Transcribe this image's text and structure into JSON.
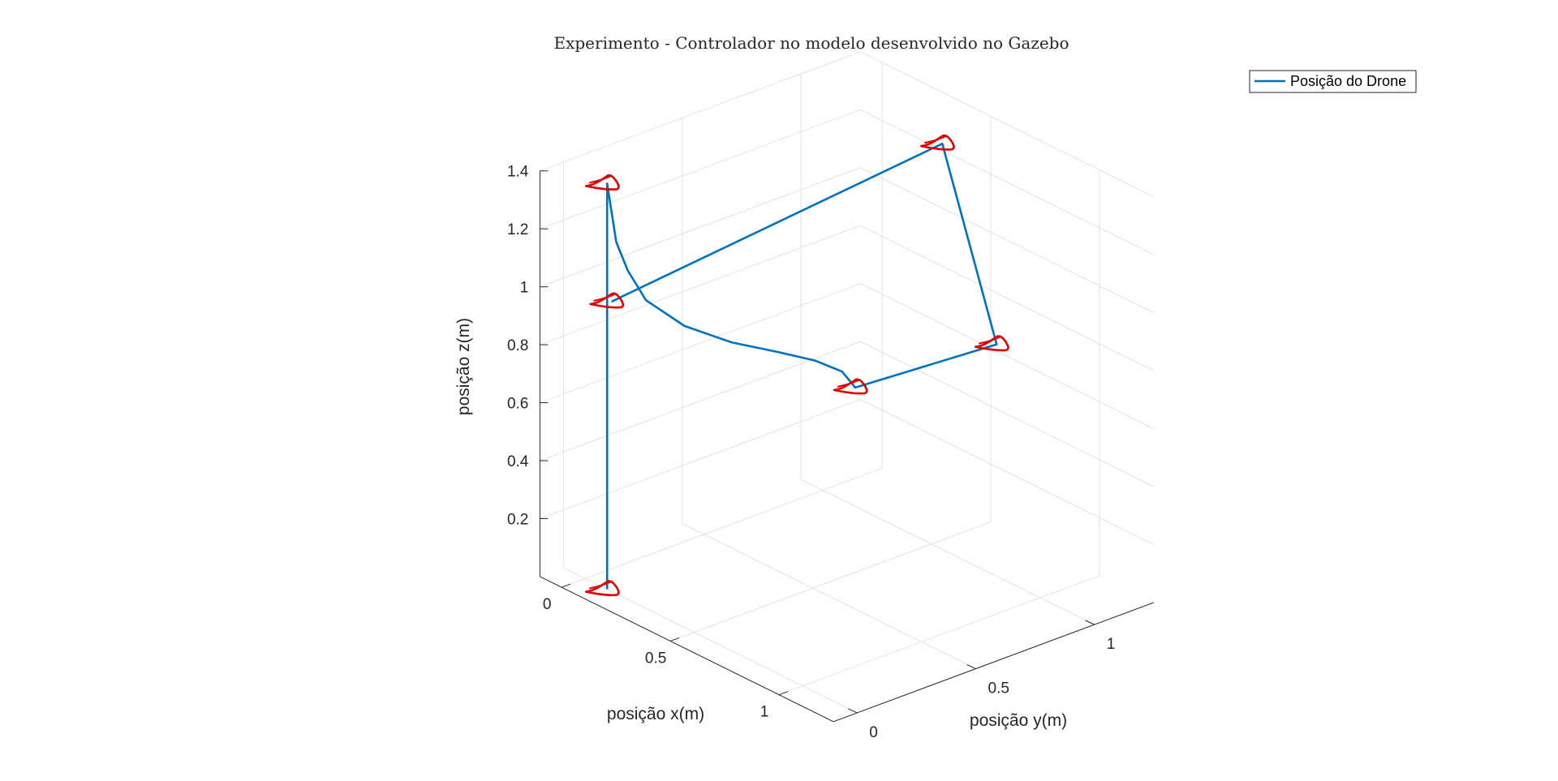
{
  "chart_data": {
    "type": "line",
    "dimensions": "3d",
    "title": "Experimento - Controlador no modelo desenvolvido no Gazebo",
    "xlabel": "posição x(m)",
    "ylabel": "posição y(m)",
    "zlabel": "posição z(m)",
    "xticks": [
      {
        "v": 0,
        "label": "0"
      },
      {
        "v": 0.5,
        "label": "0.5"
      },
      {
        "v": 1,
        "label": "1"
      }
    ],
    "yticks": [
      {
        "v": 0,
        "label": "0"
      },
      {
        "v": 0.5,
        "label": "0.5"
      },
      {
        "v": 1,
        "label": "1"
      }
    ],
    "zticks": [
      {
        "v": 0.2,
        "label": "0.2"
      },
      {
        "v": 0.4,
        "label": "0.4"
      },
      {
        "v": 0.6,
        "label": "0.6"
      },
      {
        "v": 0.8,
        "label": "0.8"
      },
      {
        "v": 1,
        "label": "1"
      },
      {
        "v": 1.2,
        "label": "1.2"
      },
      {
        "v": 1.4,
        "label": "1.4"
      }
    ],
    "xlim": [
      -0.1,
      1.25
    ],
    "ylim": [
      -0.1,
      1.25
    ],
    "zlim": [
      0,
      1.4
    ],
    "grid": true,
    "legend": {
      "entries": [
        "Posição do Drone"
      ],
      "location": "top-right"
    },
    "colors": {
      "trajectory": "#0072bd",
      "drone_marker": "#e00000",
      "grid": "#e3e3e3",
      "axis": "#262626"
    },
    "series": [
      {
        "name": "Posição do Drone",
        "x": [
          0.1,
          0.1,
          0.1,
          0.1,
          0.1,
          0.11,
          0.12,
          0.14,
          0.18,
          0.27,
          0.39,
          0.52,
          0.62,
          0.7,
          0.75,
          0.8,
          0.55,
          0.12
        ],
        "y": [
          0.0,
          0.0,
          0.0,
          0.0,
          0.0,
          0.01,
          0.02,
          0.05,
          0.09,
          0.17,
          0.26,
          0.34,
          0.4,
          0.44,
          0.45,
          1.0,
          1.0,
          0.0
        ],
        "z": [
          0.0,
          0.5,
          1.0,
          1.2,
          1.4,
          1.3,
          1.2,
          1.1,
          1.0,
          0.92,
          0.88,
          0.87,
          0.86,
          0.84,
          0.8,
          0.8,
          1.4,
          1.0
        ]
      }
    ],
    "drone_markers": [
      {
        "x": 0.1,
        "y": 0.0,
        "z": 0.0
      },
      {
        "x": 0.1,
        "y": 0.0,
        "z": 1.4
      },
      {
        "x": 0.12,
        "y": 0.0,
        "z": 1.0
      },
      {
        "x": 0.75,
        "y": 0.45,
        "z": 0.8
      },
      {
        "x": 0.8,
        "y": 1.0,
        "z": 0.8
      },
      {
        "x": 0.55,
        "y": 1.0,
        "z": 1.4
      }
    ]
  }
}
